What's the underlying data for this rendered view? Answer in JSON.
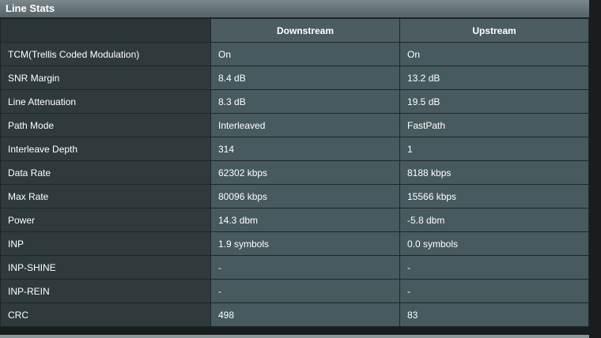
{
  "title": "Line Stats",
  "columns": [
    "",
    "Downstream",
    "Upstream"
  ],
  "rows": [
    {
      "label": "TCM(Trellis Coded Modulation)",
      "down": "On",
      "up": "On"
    },
    {
      "label": "SNR Margin",
      "down": "8.4 dB",
      "up": "13.2 dB"
    },
    {
      "label": "Line Attenuation",
      "down": "8.3 dB",
      "up": "19.5 dB"
    },
    {
      "label": "Path Mode",
      "down": "Interleaved",
      "up": "FastPath"
    },
    {
      "label": "Interleave Depth",
      "down": "314",
      "up": "1"
    },
    {
      "label": "Data Rate",
      "down": "62302 kbps",
      "up": "8188 kbps"
    },
    {
      "label": "Max Rate",
      "down": "80096 kbps",
      "up": "15566 kbps"
    },
    {
      "label": "Power",
      "down": "14.3 dbm",
      "up": "-5.8 dbm"
    },
    {
      "label": "INP",
      "down": "1.9 symbols",
      "up": "0.0 symbols"
    },
    {
      "label": "INP-SHINE",
      "down": "-",
      "up": "-"
    },
    {
      "label": "INP-REIN",
      "down": "-",
      "up": "-"
    },
    {
      "label": "CRC",
      "down": "498",
      "up": "83"
    }
  ]
}
